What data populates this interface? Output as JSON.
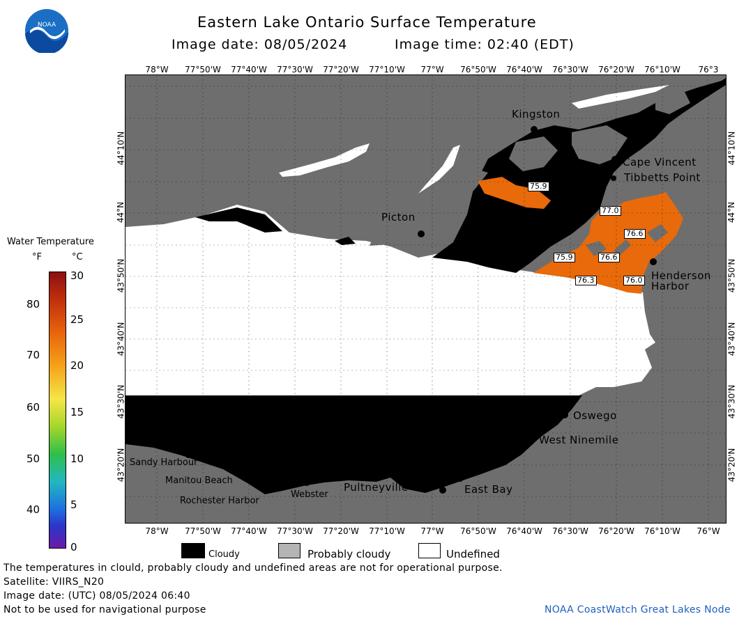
{
  "header": {
    "title": "Eastern Lake Ontario Surface Temperature",
    "image_date": "Image date: 08/05/2024",
    "image_time": "Image time: 02:40 (EDT)"
  },
  "logo": {
    "text": "NOAA",
    "icon": "noaa-logo"
  },
  "axes": {
    "lon_top": [
      "78°W",
      "77°50'W",
      "77°40'W",
      "77°30'W",
      "77°20'W",
      "77°10'W",
      "77°W",
      "76°50'W",
      "76°40'W",
      "76°30'W",
      "76°20'W",
      "76°10'W",
      "76°3"
    ],
    "lon_bottom": [
      "78°W",
      "77°50'W",
      "77°40'W",
      "77°30'W",
      "77°20'W",
      "77°10'W",
      "77°W",
      "76°50'W",
      "76°40'W",
      "76°30'W",
      "76°20'W",
      "76°10'W",
      "76°W"
    ],
    "lat": [
      "44°10'N",
      "44°N",
      "43°50'N",
      "43°40'N",
      "43°30'N",
      "43°20'N"
    ]
  },
  "places": {
    "kingston": "Kingston",
    "cape_vincent": "Cape Vincent",
    "tibbetts": "Tibbetts Point",
    "picton": "Picton",
    "henderson1": "Henderson",
    "henderson2": "Harbor",
    "oswego": "Oswego",
    "west_ninemile": "West Ninemile",
    "sandy": "Sandy Harbour",
    "manitou": "Manitou Beach",
    "rochester": "Rochester Harbor",
    "webster": "Webster",
    "pultneyville": "Pultneyville",
    "east_bay": "East Bay"
  },
  "temp_labels": [
    "75.9",
    "77.0",
    "76.6",
    "75.9",
    "76.6",
    "76.3",
    "76.0"
  ],
  "colorbar": {
    "title": "Water Temperature",
    "unit_f": "°F",
    "unit_c": "°C",
    "f_ticks": [
      "80",
      "70",
      "60",
      "50",
      "40"
    ],
    "c_ticks": [
      "30",
      "25",
      "20",
      "15",
      "10",
      "5",
      "0"
    ]
  },
  "legend": {
    "cloudy": "Cloudy",
    "probably_cloudy": "Probably cloudy",
    "undefined": "Undefined",
    "colors": {
      "cloudy": "#000000",
      "probably_cloudy": "#b4b4b4",
      "undefined": "#ffffff"
    }
  },
  "footer": {
    "note": "The temperatures in clould, probably cloudy and undefined areas are not for operational purpose.",
    "satellite": "Satellite: VIIRS_N20",
    "utc_date": "Image date: (UTC) 08/05/2024  06:40",
    "nav_warning": "Not to be used for navigational purpose",
    "credit": "NOAA CoastWatch Great Lakes Node"
  },
  "colors": {
    "land": "#6e6e6e",
    "warm_water": "#e86a0a",
    "credit": "#1f5fbf"
  }
}
